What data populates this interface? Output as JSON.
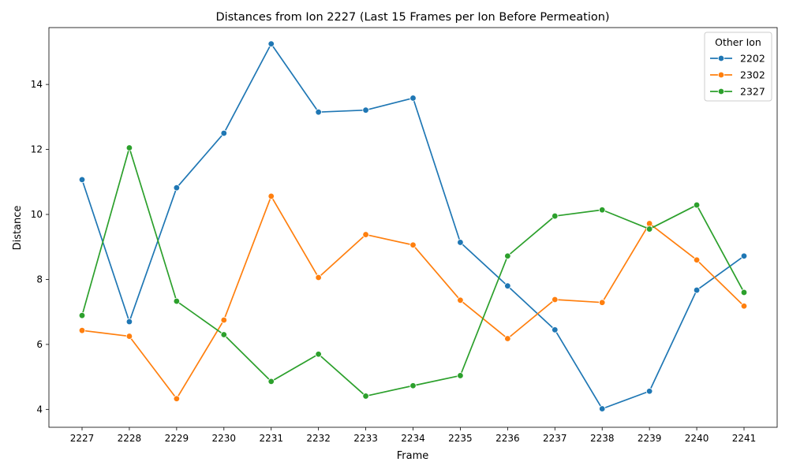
{
  "chart_data": {
    "type": "line",
    "title": "Distances from Ion 2227 (Last 15 Frames per Ion Before Permeation)",
    "xlabel": "Frame",
    "ylabel": "Distance",
    "categories": [
      "2227",
      "2228",
      "2229",
      "2230",
      "2231",
      "2232",
      "2233",
      "2234",
      "2235",
      "2236",
      "2237",
      "2238",
      "2239",
      "2240",
      "2241"
    ],
    "ylim": [
      3.45,
      15.75
    ],
    "yticks": [
      4,
      6,
      8,
      10,
      12,
      14
    ],
    "grid": false,
    "legend": {
      "title": "Other Ion",
      "placement": "top-right"
    },
    "series": [
      {
        "name": "2202",
        "color": "#1f77b4",
        "values": [
          11.07,
          6.7,
          10.82,
          12.5,
          15.25,
          13.15,
          13.21,
          13.58,
          9.14,
          7.8,
          6.45,
          4.02,
          4.56,
          7.67,
          8.72
        ]
      },
      {
        "name": "2302",
        "color": "#ff7f0e",
        "values": [
          6.43,
          6.25,
          4.33,
          6.75,
          10.56,
          8.06,
          9.38,
          9.06,
          7.36,
          6.18,
          7.38,
          7.29,
          9.72,
          8.6,
          7.18
        ]
      },
      {
        "name": "2327",
        "color": "#2ca02c",
        "values": [
          6.89,
          12.05,
          7.33,
          6.3,
          4.86,
          5.7,
          4.41,
          4.73,
          5.04,
          8.72,
          9.95,
          10.14,
          9.55,
          10.29,
          7.6
        ]
      }
    ]
  }
}
